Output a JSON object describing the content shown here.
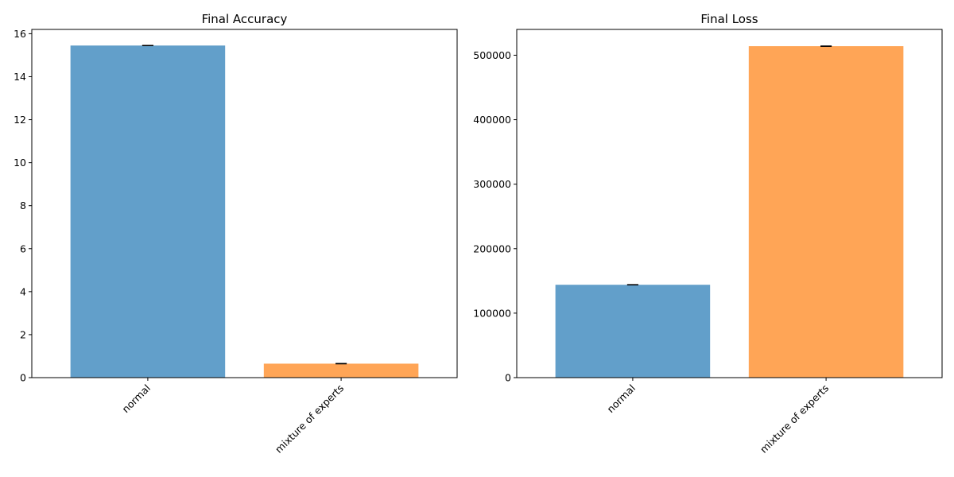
{
  "chart_data": [
    {
      "type": "bar",
      "title": "Final Accuracy",
      "xlabel": "",
      "ylabel": "",
      "categories": [
        "normal",
        "mixture of experts"
      ],
      "values": [
        15.45,
        0.65
      ],
      "errors": [
        0.0,
        0.0
      ],
      "colors": [
        "#629fca",
        "#ffa556"
      ],
      "ylim": [
        0,
        16.2
      ],
      "yticks": [
        0,
        2,
        4,
        6,
        8,
        10,
        12,
        14,
        16
      ],
      "ytick_labels": [
        "0",
        "2",
        "4",
        "6",
        "8",
        "10",
        "12",
        "14",
        "16"
      ],
      "grid": false,
      "legend": "none"
    },
    {
      "type": "bar",
      "title": "Final Loss",
      "xlabel": "",
      "ylabel": "",
      "categories": [
        "normal",
        "mixture of experts"
      ],
      "values": [
        144000,
        514000
      ],
      "errors": [
        0,
        0
      ],
      "colors": [
        "#629fca",
        "#ffa556"
      ],
      "ylim": [
        0,
        540000
      ],
      "yticks": [
        0,
        100000,
        200000,
        300000,
        400000,
        500000
      ],
      "ytick_labels": [
        "0",
        "100000",
        "200000",
        "300000",
        "400000",
        "500000"
      ],
      "grid": false,
      "legend": "none"
    }
  ]
}
